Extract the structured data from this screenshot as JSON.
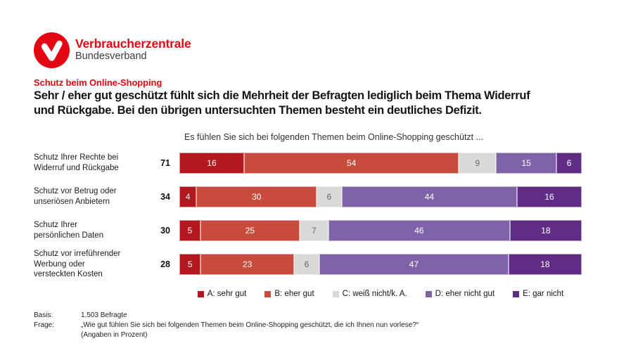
{
  "brand": {
    "logo_title": "Verbraucherzentrale",
    "logo_subtitle": "Bundesverband",
    "brand_red": "#E30613"
  },
  "header": {
    "kicker": "Schutz beim Online-Shopping",
    "title_line1": "Sehr / eher gut geschützt fühlt sich die Mehrheit der Befragten lediglich beim Thema Widerruf",
    "title_line2": "und Rückgabe. Bei den übrigen untersuchten Themen besteht ein deutliches Defizit."
  },
  "chart_data": {
    "type": "bar",
    "subtype": "horizontal-stacked-100-percent",
    "title": "Es fühlen Sie sich bei folgenden Themen beim Online-Shopping geschützt ...",
    "categories": [
      "Schutz Ihrer Rechte bei\nWiderruf und Rückgabe",
      "Schutz vor Betrug oder\nunseriösen Anbietern",
      "Schutz Ihrer\npersönlichen Daten",
      "Schutz vor irreführender\nWerbung oder\nversteckten Kosten"
    ],
    "category_totals": [
      71,
      34,
      30,
      28
    ],
    "series": [
      {
        "key": "sehr-gut",
        "name": "A: sehr gut",
        "color": "#B2181E",
        "values": [
          16,
          4,
          5,
          5
        ]
      },
      {
        "key": "eher-gut",
        "name": "B: eher gut",
        "color": "#C84C3C",
        "values": [
          54,
          30,
          25,
          23
        ]
      },
      {
        "key": "weiss-nicht",
        "name": "C: weiß nicht/k. A.",
        "color": "#D9D9D9",
        "text_color": "#666666",
        "values": [
          9,
          6,
          7,
          6
        ]
      },
      {
        "key": "eher-nicht-gut",
        "name": "D: eher nicht gut",
        "color": "#7E63A9",
        "values": [
          15,
          44,
          46,
          47
        ]
      },
      {
        "key": "gar-nicht",
        "name": "E: gar nicht",
        "color": "#5F2D86",
        "values": [
          6,
          16,
          18,
          18
        ]
      }
    ],
    "xlim": [
      0,
      100
    ],
    "value_labels": "inside",
    "legend_position": "bottom",
    "grid": false
  },
  "footer": {
    "basis_label": "Basis:",
    "basis_value": "1.503 Befragte",
    "frage_label": "Frage:",
    "frage_value": "„Wie gut fühlen Sie sich bei folgenden Themen beim Online-Shopping geschützt, die ich Ihnen nun vorlese?“",
    "frage_note": "(Angaben in Prozent)"
  }
}
